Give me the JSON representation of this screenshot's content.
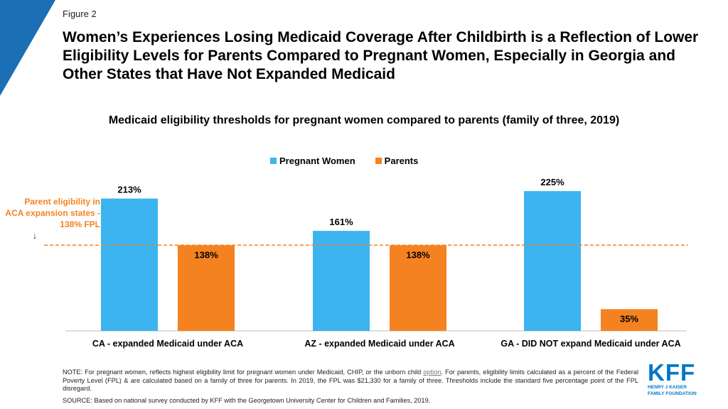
{
  "header": {
    "figure_label": "Figure 2",
    "title": "Women’s Experiences Losing Medicaid Coverage After Childbirth is a Reflection of Lower Eligibility Levels for Parents Compared to Pregnant Women, Especially in Georgia and Other States that Have Not Expanded Medicaid",
    "accent_color": "#1a6fb5"
  },
  "chart_data": {
    "type": "bar",
    "title": "Medicaid eligibility thresholds for pregnant women compared to parents (family of three, 2019)",
    "categories": [
      "CA - expanded Medicaid under ACA",
      "AZ - expanded Medicaid under ACA",
      "GA - DID NOT expand Medicaid under ACA"
    ],
    "series": [
      {
        "name": "Pregnant Women",
        "values": [
          213,
          161,
          225
        ],
        "labels": [
          "213%",
          "161%",
          "225%"
        ],
        "color": "#3cb4ef"
      },
      {
        "name": "Parents",
        "values": [
          138,
          138,
          35
        ],
        "labels": [
          "138%",
          "138%",
          "35%"
        ],
        "color": "#f58220"
      }
    ],
    "ylim": [
      0,
      240
    ],
    "reference_line": {
      "value": 138,
      "color": "#f58220",
      "style": "dashed"
    },
    "annotation": "Parent eligibility in ACA expansion states - 138% FPL",
    "legend_position": "top-center",
    "grid": false
  },
  "footer": {
    "note_prefix": "NOTE: For pregnant women, reflects highest eligibility limit for pregnant women under Medicaid, CHIP, or the unborn child",
    "note_link": "option",
    "note_suffix": ". For parents, eligibility limits calculated as a percent of the Federal Poverty Level (FPL) & are calculated based on a family of three for parents. In 2019, the FPL was $21,330 for a family of three. Thresholds include the standard five percentage point of the FPL disregard.",
    "source": "SOURCE: Based on national survey conducted by KFF with the Georgetown University Center for Children and Families, 2019."
  },
  "logo": {
    "mark": "KFF",
    "line1": "HENRY J KAISER",
    "line2": "FAMILY FOUNDATION"
  }
}
